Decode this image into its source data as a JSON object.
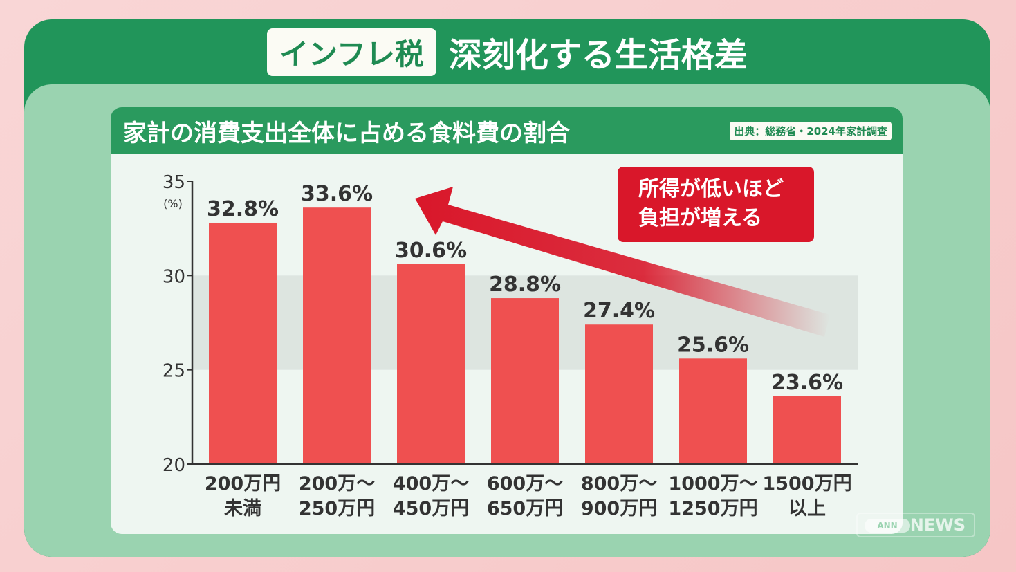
{
  "header": {
    "tag": "インフレ税",
    "headline": "深刻化する生活格差"
  },
  "card": {
    "title": "家計の消費支出全体に占める食料費の割合",
    "source": "出典：総務省・2024年家計調査"
  },
  "callout": {
    "line1": "所得が低いほど",
    "line2": "負担が増える"
  },
  "logo": {
    "pill": "ANN",
    "text": "NEWS"
  },
  "chart_data": {
    "type": "bar",
    "title": "家計の消費支出全体に占める食料費の割合",
    "ylabel": "(%)",
    "ylim": [
      20,
      35
    ],
    "yticks": [
      "20",
      "25",
      "30",
      "35"
    ],
    "highlight_band": [
      25,
      30
    ],
    "categories": [
      [
        "200万円",
        "未満"
      ],
      [
        "200万〜",
        "250万円"
      ],
      [
        "400万〜",
        "450万円"
      ],
      [
        "600万〜",
        "650万円"
      ],
      [
        "800万〜",
        "900万円"
      ],
      [
        "1000万〜",
        "1250万円"
      ],
      [
        "1500万円",
        "以上"
      ]
    ],
    "values": [
      32.8,
      33.6,
      30.6,
      28.8,
      27.4,
      25.6,
      23.6
    ],
    "value_labels": [
      "32.8%",
      "33.6%",
      "30.6%",
      "28.8%",
      "27.4%",
      "25.6%",
      "23.6%"
    ],
    "colors": {
      "bar": "#ef5050",
      "axis": "#333333",
      "band": "#dde5e0",
      "arrow": "#d9172a"
    }
  }
}
